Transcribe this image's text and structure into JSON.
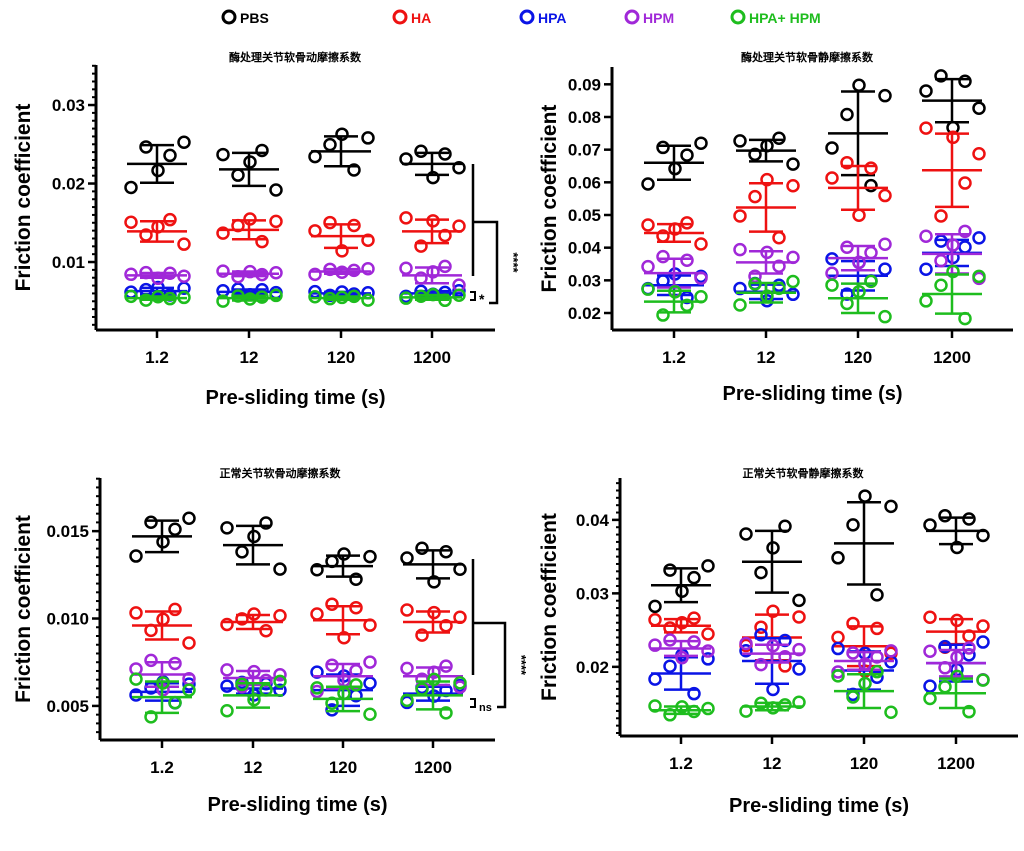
{
  "legend": [
    {
      "name": "PBS",
      "color": "#000000"
    },
    {
      "name": "HA",
      "color": "#ee1111"
    },
    {
      "name": "HPA",
      "color": "#0a14e6"
    },
    {
      "name": "HPM",
      "color": "#a028d8"
    },
    {
      "name": "HPA+ HPM",
      "color": "#1ebd1e"
    }
  ],
  "chart_data": [
    {
      "type": "scatter",
      "title": "酶处理关节软骨动摩擦系数",
      "xlabel": "Pre-sliding time (s)",
      "ylabel": "Friction coefficient",
      "categories": [
        "1.2",
        "12",
        "120",
        "1200"
      ],
      "ylim": [
        0.00134,
        0.0351
      ],
      "yticks": [
        "0.01",
        "0.02",
        "0.03"
      ],
      "minor_step": 0.001,
      "series": [
        {
          "name": "PBS",
          "mean": [
            0.0225,
            0.0218,
            0.0241,
            0.0225
          ],
          "sd": [
            0.0024,
            0.0021,
            0.0019,
            0.0014
          ]
        },
        {
          "name": "HA",
          "mean": [
            0.0139,
            0.0141,
            0.0133,
            0.0139
          ],
          "sd": [
            0.0013,
            0.0012,
            0.0015,
            0.0015
          ]
        },
        {
          "name": "HPA",
          "mean": [
            0.0063,
            0.0062,
            0.006,
            0.006
          ],
          "sd": [
            0.0004,
            0.0003,
            0.0002,
            0.0003
          ]
        },
        {
          "name": "HPM",
          "mean": [
            0.0083,
            0.0085,
            0.0088,
            0.0083
          ],
          "sd": [
            0.0003,
            0.0003,
            0.0003,
            0.001
          ]
        },
        {
          "name": "HPA+ HPM",
          "mean": [
            0.0054,
            0.0054,
            0.0054,
            0.0055
          ],
          "sd": [
            0.0002,
            0.0003,
            0.0002,
            0.0003
          ]
        }
      ],
      "annotations": [
        "****",
        "*"
      ]
    },
    {
      "type": "scatter",
      "title": "酶处理关节软骨静摩擦系数",
      "xlabel": "Pre-sliding time (s)",
      "ylabel": "Friction coefficient",
      "categories": [
        "1.2",
        "12",
        "120",
        "1200"
      ],
      "ylim": [
        0.0148,
        0.0953
      ],
      "yticks": [
        "0.02",
        "0.03",
        "0.04",
        "0.05",
        "0.06",
        "0.07",
        "0.08",
        "0.09"
      ],
      "minor_step": 0,
      "series": [
        {
          "name": "PBS",
          "mean": [
            0.066,
            0.0697,
            0.075,
            0.085
          ],
          "sd": [
            0.0052,
            0.0033,
            0.0128,
            0.0066
          ]
        },
        {
          "name": "HA",
          "mean": [
            0.0445,
            0.0523,
            0.0583,
            0.0637
          ],
          "sd": [
            0.0027,
            0.0074,
            0.0067,
            0.0112
          ]
        },
        {
          "name": "HPA",
          "mean": [
            0.0285,
            0.0265,
            0.0314,
            0.0384
          ],
          "sd": [
            0.003,
            0.0022,
            0.0045,
            0.004
          ]
        },
        {
          "name": "HPM",
          "mean": [
            0.0322,
            0.0355,
            0.0368,
            0.0381
          ],
          "sd": [
            0.0044,
            0.0034,
            0.0037,
            0.006
          ]
        },
        {
          "name": "HPA+ HPM",
          "mean": [
            0.0235,
            0.0262,
            0.0245,
            0.0258
          ],
          "sd": [
            0.0033,
            0.003,
            0.0045,
            0.006
          ]
        }
      ],
      "annotations": []
    },
    {
      "type": "scatter",
      "title": "正常关节软骨动摩擦系数",
      "xlabel": "Pre-sliding time (s)",
      "ylabel": "Friction coefficient",
      "categories": [
        "1.2",
        "12",
        "120",
        "1200"
      ],
      "ylim": [
        0.00305,
        0.01804
      ],
      "yticks": [
        "0.005",
        "0.010",
        "0.015"
      ],
      "minor_step": 0.0005,
      "series": [
        {
          "name": "PBS",
          "mean": [
            0.0147,
            0.0142,
            0.013,
            0.0131
          ],
          "sd": [
            0.0009,
            0.0011,
            0.0006,
            0.0008
          ]
        },
        {
          "name": "HA",
          "mean": [
            0.0096,
            0.0098,
            0.0099,
            0.0098
          ],
          "sd": [
            0.0008,
            0.0004,
            0.0008,
            0.0006
          ]
        },
        {
          "name": "HPA",
          "mean": [
            0.0058,
            0.006,
            0.0059,
            0.0057
          ],
          "sd": [
            0.0005,
            0.0003,
            0.0009,
            0.0004
          ]
        },
        {
          "name": "HPM",
          "mean": [
            0.0068,
            0.0066,
            0.0067,
            0.0067
          ],
          "sd": [
            0.0007,
            0.0004,
            0.0007,
            0.0005
          ]
        },
        {
          "name": "HPA+ HPM",
          "mean": [
            0.0055,
            0.0056,
            0.0054,
            0.0056
          ],
          "sd": [
            0.0009,
            0.0007,
            0.0007,
            0.0008
          ]
        }
      ],
      "annotations": [
        "****",
        "ns"
      ]
    },
    {
      "type": "scatter",
      "title": "正常关节软骨静摩擦系数",
      "xlabel": "Pre-sliding time (s)",
      "ylabel": "Friction coefficient",
      "categories": [
        "1.2",
        "12",
        "120",
        "1200"
      ],
      "ylim": [
        0.01059,
        0.0457
      ],
      "yticks": [
        "0.02",
        "0.03",
        "0.04"
      ],
      "minor_step": 0.001,
      "series": [
        {
          "name": "PBS",
          "mean": [
            0.0311,
            0.0343,
            0.0368,
            0.0385
          ],
          "sd": [
            0.0023,
            0.0042,
            0.0056,
            0.0018
          ]
        },
        {
          "name": "HA",
          "mean": [
            0.0256,
            0.024,
            0.0228,
            0.0248
          ],
          "sd": [
            0.0009,
            0.0031,
            0.0027,
            0.0017
          ]
        },
        {
          "name": "HPA",
          "mean": [
            0.0191,
            0.0208,
            0.0195,
            0.0205
          ],
          "sd": [
            0.0022,
            0.0031,
            0.0026,
            0.0025
          ]
        },
        {
          "name": "HPM",
          "mean": [
            0.0225,
            0.0218,
            0.0208,
            0.0205
          ],
          "sd": [
            0.001,
            0.0012,
            0.0012,
            0.0018
          ]
        },
        {
          "name": "HPA+ HPM",
          "mean": [
            0.0141,
            0.0146,
            0.0167,
            0.0164
          ],
          "sd": [
            0.0005,
            0.0005,
            0.0023,
            0.002
          ]
        }
      ],
      "annotations": []
    }
  ]
}
